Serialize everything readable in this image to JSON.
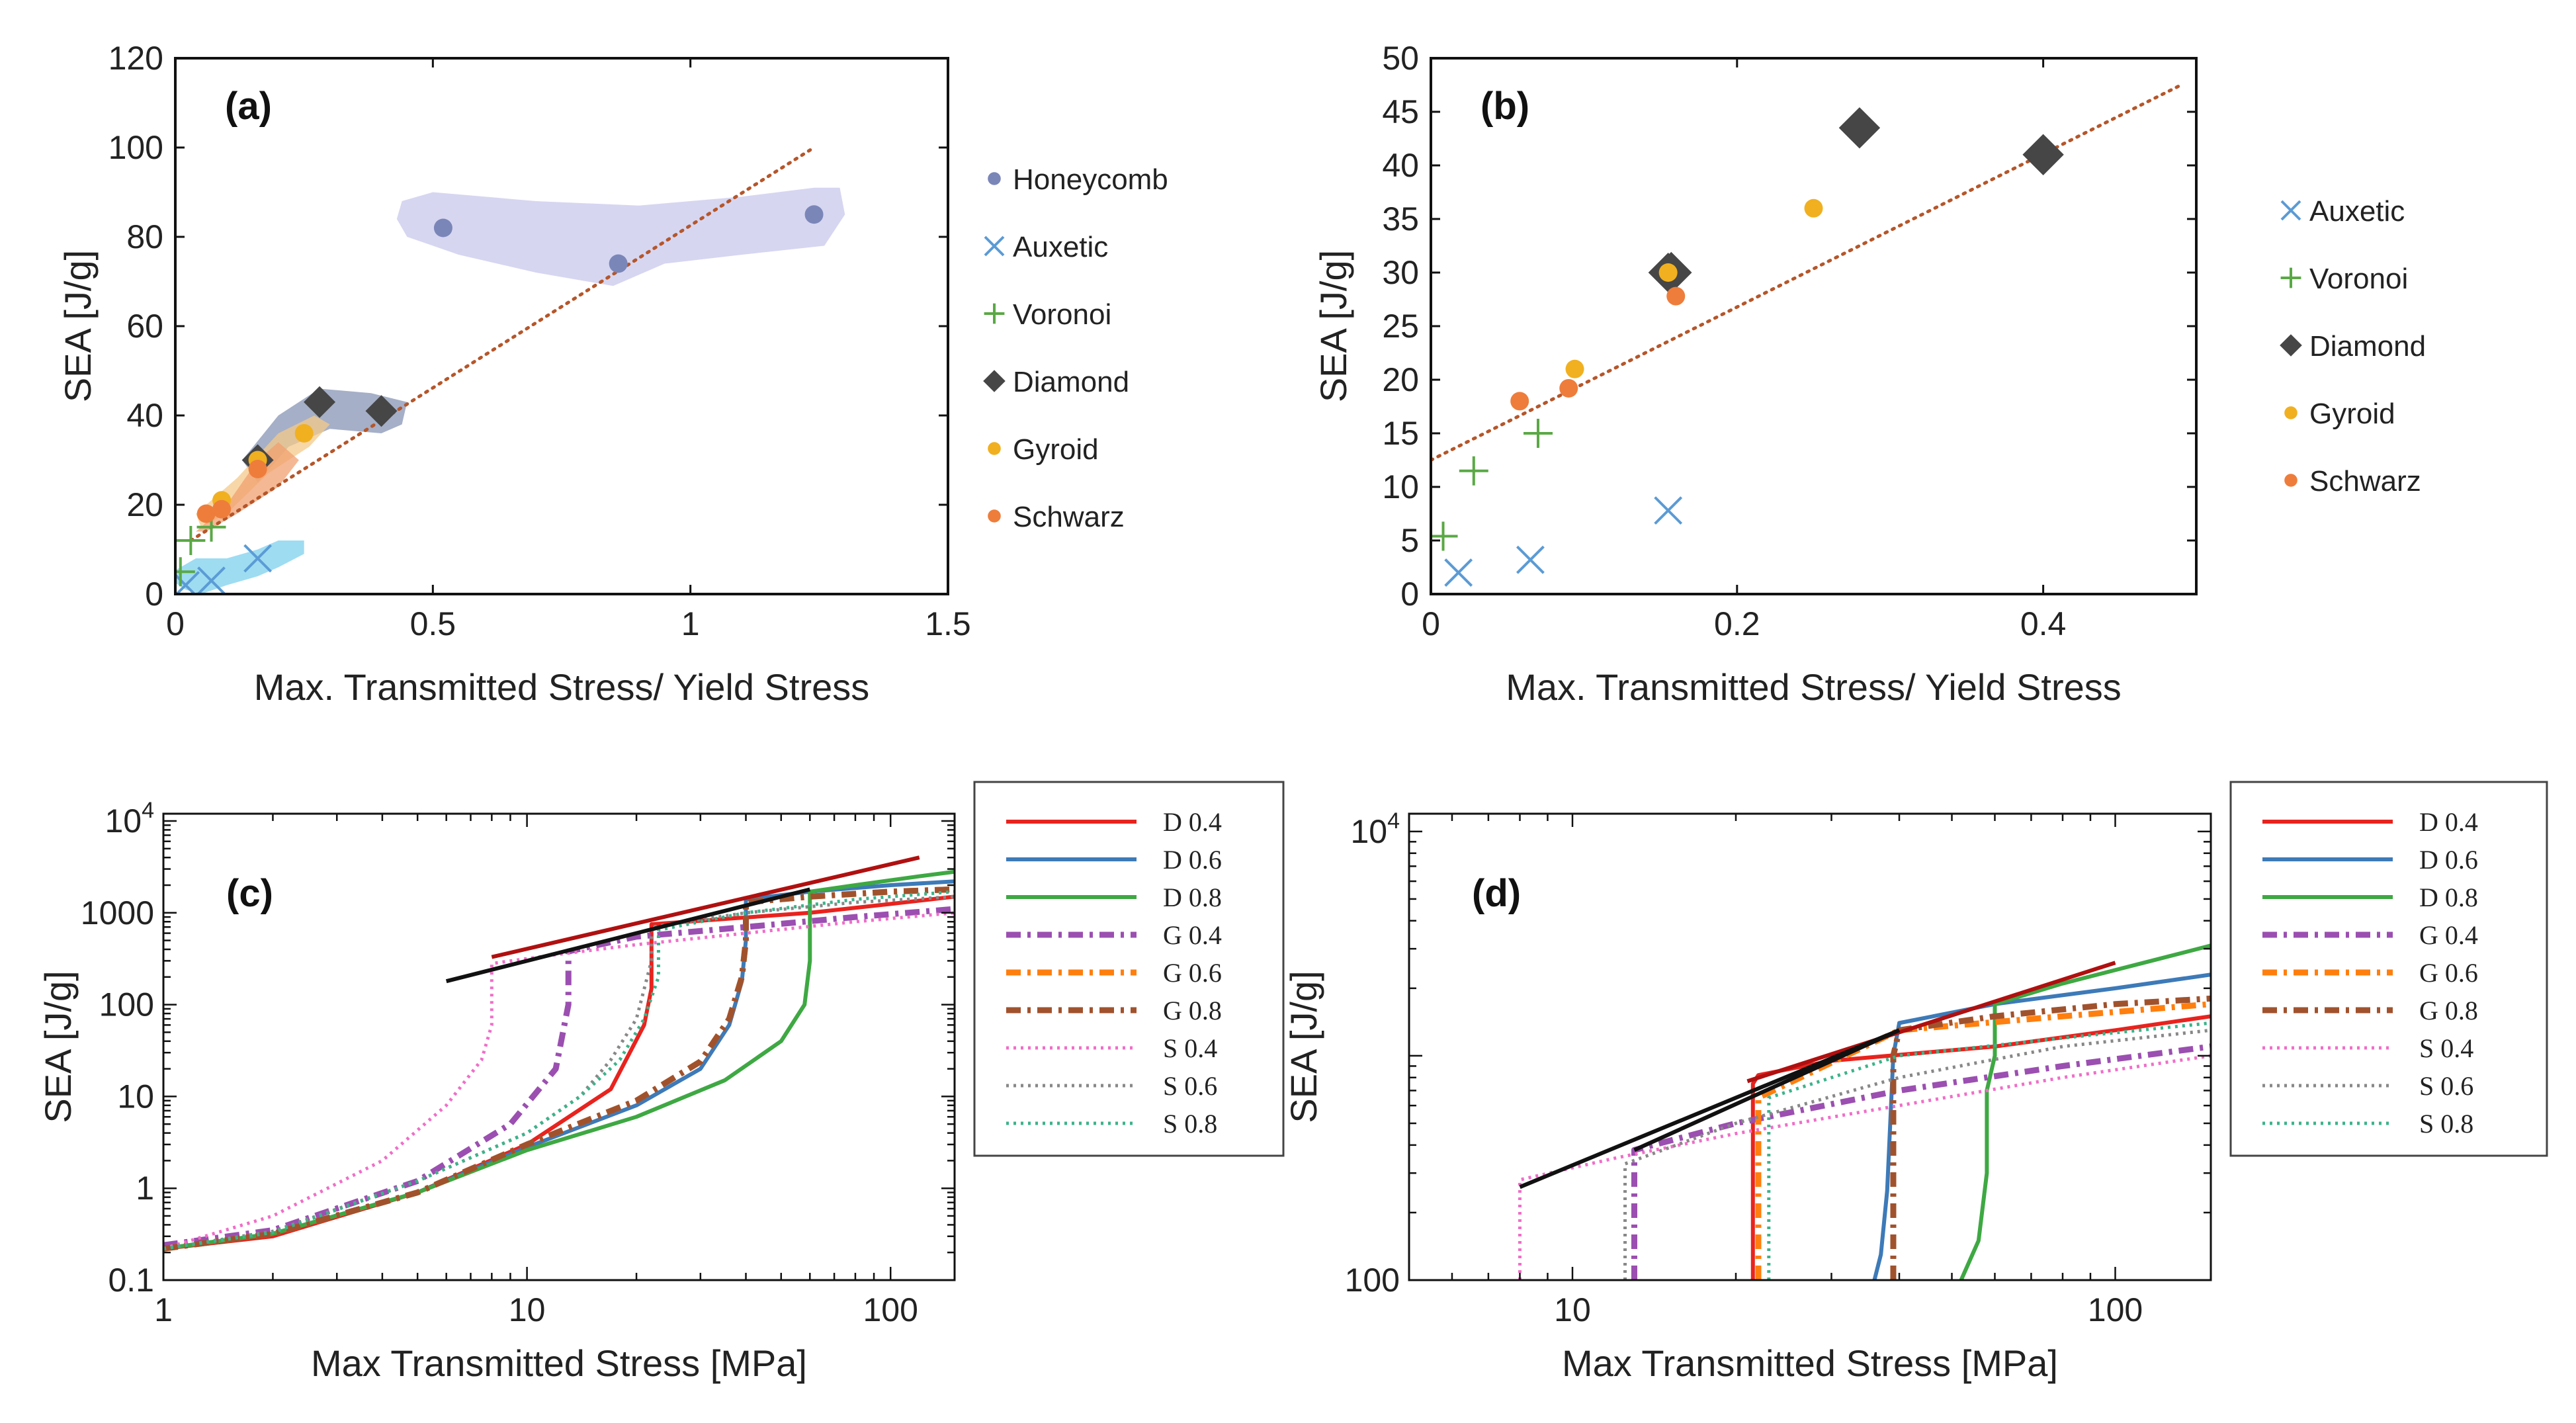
{
  "chart_data": [
    {
      "panel": "(a)",
      "type": "scatter",
      "xlabel": "Max. Transmitted Stress/ Yield Stress",
      "ylabel": "SEA [J/g]",
      "xlim": [
        0,
        1.5
      ],
      "ylim": [
        0,
        120
      ],
      "xticks": [
        "0",
        "0.5",
        "1",
        "1.5"
      ],
      "yticks": [
        "0",
        "20",
        "40",
        "60",
        "80",
        "100",
        "120"
      ],
      "legend": [
        "Honeycomb",
        "Auxetic",
        "Voronoi",
        "Diamond",
        "Gyroid",
        "Schwarz"
      ],
      "trend": [
        [
          0.03,
          12
        ],
        [
          1.24,
          100
        ]
      ],
      "regions": [
        {
          "name": "Honeycomb",
          "color": "#c8c8ec",
          "pts": [
            [
              0.44,
              88
            ],
            [
              0.5,
              90
            ],
            [
              0.7,
              88
            ],
            [
              0.9,
              87
            ],
            [
              1.1,
              89
            ],
            [
              1.24,
              91
            ],
            [
              1.29,
              91
            ],
            [
              1.3,
              85
            ],
            [
              1.26,
              78
            ],
            [
              1.1,
              76
            ],
            [
              0.95,
              74
            ],
            [
              0.85,
              69
            ],
            [
              0.7,
              72
            ],
            [
              0.55,
              76
            ],
            [
              0.45,
              80
            ],
            [
              0.43,
              84
            ]
          ]
        },
        {
          "name": "Diamond",
          "color": "#8794b4",
          "pts": [
            [
              0.13,
              30
            ],
            [
              0.2,
              40
            ],
            [
              0.28,
              46
            ],
            [
              0.38,
              45
            ],
            [
              0.45,
              43
            ],
            [
              0.44,
              38
            ],
            [
              0.4,
              36
            ],
            [
              0.3,
              37
            ],
            [
              0.22,
              33
            ],
            [
              0.16,
              25
            ]
          ]
        },
        {
          "name": "Gyroid",
          "color": "#f4c98a",
          "pts": [
            [
              0.04,
              18
            ],
            [
              0.12,
              26
            ],
            [
              0.2,
              36
            ],
            [
              0.27,
              40
            ],
            [
              0.3,
              38
            ],
            [
              0.26,
              33
            ],
            [
              0.18,
              27
            ],
            [
              0.1,
              18
            ],
            [
              0.05,
              15
            ]
          ]
        },
        {
          "name": "Schwarz",
          "color": "#f2a070",
          "pts": [
            [
              0.04,
              14
            ],
            [
              0.1,
              20
            ],
            [
              0.16,
              30
            ],
            [
              0.2,
              34
            ],
            [
              0.24,
              30
            ],
            [
              0.2,
              24
            ],
            [
              0.12,
              18
            ],
            [
              0.06,
              14
            ]
          ]
        },
        {
          "name": "Auxetic",
          "color": "#7dd0ee",
          "pts": [
            [
              -0.02,
              4
            ],
            [
              0.04,
              8
            ],
            [
              0.1,
              8
            ],
            [
              0.16,
              10
            ],
            [
              0.2,
              12
            ],
            [
              0.25,
              12
            ],
            [
              0.25,
              9
            ],
            [
              0.2,
              6
            ],
            [
              0.16,
              4
            ],
            [
              0.1,
              2
            ],
            [
              0.05,
              0
            ],
            [
              0.02,
              1
            ]
          ]
        }
      ],
      "series": [
        {
          "name": "Honeycomb",
          "marker": "circle",
          "color": "#7b86b8",
          "x": [
            0.52,
            0.86,
            1.24
          ],
          "y": [
            82,
            74,
            85
          ]
        },
        {
          "name": "Auxetic",
          "marker": "x",
          "color": "#5b9bd5",
          "x": [
            0.02,
            0.07,
            0.16
          ],
          "y": [
            2,
            3,
            8
          ]
        },
        {
          "name": "Voronoi",
          "marker": "plus",
          "color": "#5aa845",
          "x": [
            0.01,
            0.03,
            0.07
          ],
          "y": [
            5,
            12,
            15
          ]
        },
        {
          "name": "Diamond",
          "marker": "diamond",
          "color": "#464646",
          "x": [
            0.16,
            0.28,
            0.4
          ],
          "y": [
            30,
            43,
            41
          ]
        },
        {
          "name": "Gyroid",
          "marker": "circle",
          "color": "#f0b020",
          "x": [
            0.09,
            0.25,
            0.16
          ],
          "y": [
            21,
            36,
            30
          ]
        },
        {
          "name": "Schwarz",
          "marker": "circle",
          "color": "#ee7d3b",
          "x": [
            0.06,
            0.16,
            0.09
          ],
          "y": [
            18,
            28,
            19
          ]
        }
      ]
    },
    {
      "panel": "(b)",
      "type": "scatter",
      "xlabel": "Max. Transmitted Stress/ Yield Stress",
      "ylabel": "SEA [J/g]",
      "xlim": [
        0,
        0.5
      ],
      "ylim": [
        0,
        50
      ],
      "xticks": [
        "0",
        "0.2",
        "0.4"
      ],
      "yticks": [
        "0",
        "5",
        "10",
        "15",
        "20",
        "25",
        "30",
        "35",
        "40",
        "45",
        "50"
      ],
      "legend": [
        "Auxetic",
        "Voronoi",
        "Diamond",
        "Gyroid",
        "Schwarz"
      ],
      "trend": [
        [
          0,
          12.5
        ],
        [
          0.49,
          47.5
        ]
      ],
      "series": [
        {
          "name": "Auxetic",
          "marker": "x",
          "color": "#5b9bd5",
          "x": [
            0.018,
            0.065,
            0.155
          ],
          "y": [
            2,
            3.2,
            7.8
          ]
        },
        {
          "name": "Voronoi",
          "marker": "plus",
          "color": "#5aa845",
          "x": [
            0.008,
            0.028,
            0.07
          ],
          "y": [
            5.4,
            11.5,
            15
          ]
        },
        {
          "name": "Diamond",
          "marker": "diamond",
          "color": "#464646",
          "x": [
            0.157,
            0.28,
            0.4
          ],
          "y": [
            30,
            43.5,
            41
          ]
        },
        {
          "name": "Gyroid",
          "marker": "circle",
          "color": "#f0b020",
          "x": [
            0.155,
            0.25,
            0.094
          ],
          "y": [
            30,
            36,
            21
          ]
        },
        {
          "name": "Schwarz",
          "marker": "circle",
          "color": "#ee7d3b",
          "x": [
            0.16,
            0.058,
            0.09
          ],
          "y": [
            27.8,
            18,
            19.2
          ]
        }
      ]
    },
    {
      "panel": "(c)",
      "type": "line",
      "xlabel": "Max Transmitted Stress [MPa]",
      "ylabel": "SEA [J/g]",
      "xscale": "log",
      "yscale": "log",
      "xlim": [
        1,
        150
      ],
      "ylim": [
        0.1,
        12000
      ],
      "xticks": [
        "1",
        "10",
        "100"
      ],
      "yticks": [
        "0.1",
        "1",
        "10",
        "100",
        "1000",
        "10<sup>4</sup>"
      ],
      "series": [
        {
          "name": "D 0.4",
          "color": "#e8231e",
          "style": "solid",
          "x": [
            1,
            2,
            5,
            10,
            17,
            21,
            22,
            22,
            30,
            60,
            100,
            150
          ],
          "y": [
            0.22,
            0.3,
            0.9,
            3,
            12,
            60,
            150,
            750,
            820,
            1000,
            1250,
            1500
          ]
        },
        {
          "name": "D 0.6",
          "color": "#3d7ab8",
          "style": "solid",
          "x": [
            1,
            2,
            5,
            10,
            20,
            30,
            36,
            39,
            40,
            40,
            60,
            100,
            150
          ],
          "y": [
            0.22,
            0.32,
            0.9,
            2.8,
            8,
            20,
            60,
            180,
            500,
            1400,
            1700,
            2000,
            2200
          ]
        },
        {
          "name": "D 0.8",
          "color": "#3ea843",
          "style": "solid",
          "x": [
            1,
            2,
            5,
            10,
            20,
            35,
            50,
            58,
            60,
            60,
            80,
            120,
            150
          ],
          "y": [
            0.22,
            0.32,
            0.9,
            2.6,
            6,
            15,
            40,
            100,
            300,
            1700,
            2000,
            2500,
            2800
          ]
        },
        {
          "name": "G 0.4",
          "color": "#9b4fb0",
          "style": "dashdot",
          "x": [
            1,
            2,
            5,
            9,
            12,
            13,
            13,
            20,
            40,
            80,
            150
          ],
          "y": [
            0.24,
            0.35,
            1.2,
            5,
            20,
            100,
            380,
            550,
            700,
            900,
            1100
          ]
        },
        {
          "name": "G 0.6",
          "color": "#ff7f0e",
          "style": "dashdot",
          "x": [
            1,
            2,
            5,
            10,
            20,
            30,
            36,
            39,
            40,
            40,
            60,
            100,
            150
          ],
          "y": [
            0.22,
            0.32,
            0.9,
            3,
            9,
            24,
            70,
            200,
            500,
            1300,
            1500,
            1700,
            1800
          ]
        },
        {
          "name": "G 0.8",
          "color": "#a0522d",
          "style": "dashdot",
          "x": [
            1,
            2,
            5,
            10,
            20,
            30,
            36,
            39,
            40,
            40,
            60,
            100,
            150
          ],
          "y": [
            0.22,
            0.32,
            0.9,
            3,
            9,
            24,
            70,
            200,
            500,
            1300,
            1500,
            1700,
            1800
          ]
        },
        {
          "name": "S 0.4",
          "color": "#f06ec8",
          "style": "dotted",
          "x": [
            1,
            2,
            4,
            6,
            7.5,
            8,
            8,
            12,
            20,
            40,
            80,
            150
          ],
          "y": [
            0.22,
            0.5,
            2,
            8,
            25,
            60,
            280,
            350,
            450,
            600,
            800,
            1000
          ]
        },
        {
          "name": "S 0.6",
          "color": "#888888",
          "style": "dotted",
          "x": [
            1,
            2,
            5,
            10,
            14,
            17,
            20,
            22,
            22,
            40,
            80,
            150
          ],
          "y": [
            0.22,
            0.34,
            1.2,
            4,
            10,
            25,
            70,
            300,
            700,
            1000,
            1300,
            1500
          ]
        },
        {
          "name": "S 0.8",
          "color": "#3cb38a",
          "style": "dotted",
          "x": [
            1,
            2,
            5,
            10,
            14,
            18,
            21,
            23,
            23,
            40,
            80,
            150
          ],
          "y": [
            0.22,
            0.33,
            1.2,
            4,
            10,
            25,
            70,
            200,
            650,
            1000,
            1400,
            1700
          ]
        }
      ],
      "trend_lines": [
        {
          "color": "#b01010",
          "x": [
            8,
            120
          ],
          "y": [
            330,
            4000
          ]
        },
        {
          "color": "#111111",
          "x": [
            6,
            60
          ],
          "y": [
            180,
            1800
          ]
        }
      ]
    },
    {
      "panel": "(d)",
      "type": "line",
      "xlabel": "Max Transmitted Stress [MPa]",
      "ylabel": "SEA [J/g]",
      "xscale": "log",
      "yscale": "log",
      "xlim": [
        5,
        150
      ],
      "ylim": [
        100,
        12000
      ],
      "xticks": [
        "10",
        "100"
      ],
      "yticks": [
        "100",
        "10<sup>4</sup>"
      ],
      "series": [
        {
          "name": "D 0.4",
          "color": "#e8231e",
          "style": "solid",
          "x": [
            21.5,
            21.5,
            22,
            30,
            60,
            100,
            150
          ],
          "y": [
            100,
            750,
            820,
            950,
            1100,
            1300,
            1500
          ]
        },
        {
          "name": "D 0.6",
          "color": "#3d7ab8",
          "style": "solid",
          "x": [
            36,
            37,
            38,
            38.5,
            39,
            40,
            60,
            100,
            150
          ],
          "y": [
            100,
            130,
            250,
            500,
            1000,
            1400,
            1700,
            2000,
            2300
          ]
        },
        {
          "name": "D 0.8",
          "color": "#3ea843",
          "style": "solid",
          "x": [
            52,
            56,
            58,
            58,
            60,
            60,
            80,
            120,
            150
          ],
          "y": [
            100,
            150,
            300,
            700,
            1000,
            1700,
            2100,
            2700,
            3100
          ]
        },
        {
          "name": "G 0.4",
          "color": "#9b4fb0",
          "style": "dashdot",
          "x": [
            13,
            13,
            20,
            40,
            80,
            150
          ],
          "y": [
            100,
            380,
            500,
            700,
            900,
            1100
          ]
        },
        {
          "name": "G 0.6",
          "color": "#ff7f0e",
          "style": "dashdot",
          "x": [
            22,
            22,
            40,
            80,
            150
          ],
          "y": [
            100,
            650,
            1300,
            1500,
            1700
          ]
        },
        {
          "name": "G 0.8",
          "color": "#a0522d",
          "style": "dashdot",
          "x": [
            39,
            39,
            40,
            60,
            100,
            150
          ],
          "y": [
            100,
            1000,
            1300,
            1500,
            1700,
            1800
          ]
        },
        {
          "name": "S 0.4",
          "color": "#f06ec8",
          "style": "dotted",
          "x": [
            8,
            8,
            12,
            20,
            40,
            80,
            150
          ],
          "y": [
            100,
            280,
            350,
            450,
            600,
            800,
            1000
          ]
        },
        {
          "name": "S 0.6",
          "color": "#888888",
          "style": "dotted",
          "x": [
            12.5,
            12.5,
            20,
            40,
            80,
            150
          ],
          "y": [
            100,
            330,
            500,
            800,
            1100,
            1300
          ]
        },
        {
          "name": "S 0.8",
          "color": "#3cb38a",
          "style": "dotted",
          "x": [
            23,
            23,
            40,
            80,
            150
          ],
          "y": [
            100,
            650,
            1000,
            1200,
            1400
          ]
        }
      ],
      "trend_lines": [
        {
          "color": "#b01010",
          "x": [
            21,
            100
          ],
          "y": [
            770,
            2600
          ]
        },
        {
          "color": "#111111",
          "x": [
            13,
            40
          ],
          "y": [
            380,
            1300
          ]
        },
        {
          "color": "#111111",
          "x": [
            8,
            40
          ],
          "y": [
            260,
            1300
          ]
        }
      ]
    }
  ]
}
